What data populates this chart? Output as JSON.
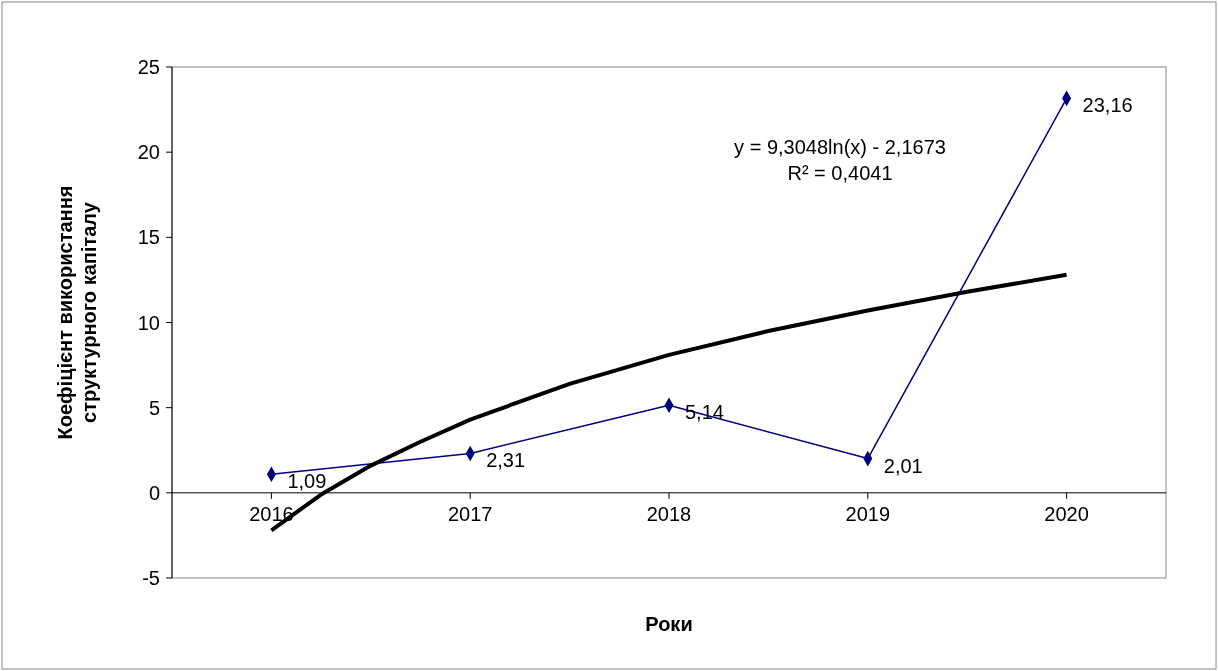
{
  "chart_data": {
    "type": "line",
    "xlabel": "Роки",
    "ylabel": "Коефіцієнт використання структурного капіталу",
    "x": [
      2016,
      2017,
      2018,
      2019,
      2020
    ],
    "xlim": [
      2015.5,
      2020.5
    ],
    "xticks": [
      2016,
      2017,
      2018,
      2019,
      2020
    ],
    "ylim": [
      -5,
      25
    ],
    "yticks": [
      -5,
      0,
      5,
      10,
      15,
      20,
      25
    ],
    "grid": false,
    "marker": "diamond",
    "line_style": "solid",
    "series": [
      {
        "color": "#000080",
        "values": [
          1.09,
          2.31,
          5.14,
          2.01,
          23.16
        ],
        "value_labels": [
          "1,09",
          "2,31",
          "5,14",
          "2,01",
          "23,16"
        ]
      },
      {
        "color": "#000000",
        "marker": "none",
        "x": [
          2016,
          2016.25,
          2016.5,
          2016.75,
          2017,
          2017.5,
          2018,
          2018.5,
          2019,
          2019.5,
          2020
        ],
        "values": [
          -2.2,
          -0.1,
          1.6,
          3.0,
          4.3,
          6.4,
          8.1,
          9.5,
          10.7,
          11.8,
          12.8
        ]
      }
    ],
    "annotations": [
      "y = 9,3048ln(x) - 2,1673",
      "R² = 0,4041"
    ]
  }
}
